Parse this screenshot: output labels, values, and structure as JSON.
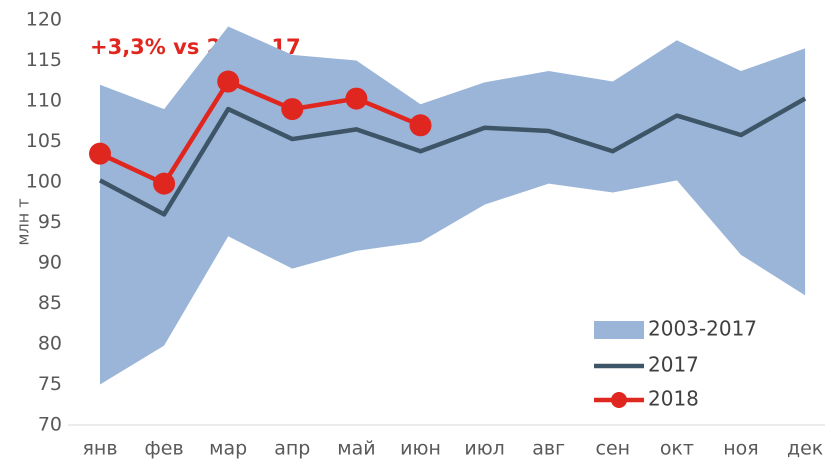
{
  "chart_data": {
    "type": "line",
    "annotation": "+3,3% vs 2 кв. 17",
    "y_label": "млн т",
    "categories": [
      "янв",
      "фев",
      "мар",
      "апр",
      "май",
      "июн",
      "июл",
      "авг",
      "сен",
      "окт",
      "ноя",
      "дек"
    ],
    "series": [
      {
        "name": "2003-2017",
        "color": "#9bb5d8",
        "kind": "range",
        "low": [
          75,
          79.8,
          93.3,
          89.3,
          91.5,
          92.6,
          97.2,
          99.8,
          98.7,
          100.2,
          91,
          86
        ],
        "high": [
          112,
          109,
          119.2,
          115.7,
          115,
          109.6,
          112.3,
          113.7,
          112.4,
          117.5,
          113.7,
          116.5
        ]
      },
      {
        "name": "2017",
        "color": "#3d5566",
        "values": [
          100.2,
          96,
          109,
          105.3,
          106.5,
          103.8,
          106.7,
          106.3,
          103.8,
          108.2,
          105.8,
          110.3
        ]
      },
      {
        "name": "2018",
        "color": "#e0271f",
        "markers": true,
        "values": [
          103.5,
          99.8,
          112.4,
          109,
          110.3,
          107,
          null,
          null,
          null,
          null,
          null,
          null
        ]
      }
    ],
    "ylim": [
      70,
      120
    ],
    "yticks": [
      70,
      75,
      80,
      85,
      90,
      95,
      100,
      105,
      110,
      115,
      120
    ],
    "grid": false,
    "legend": "lower right"
  }
}
